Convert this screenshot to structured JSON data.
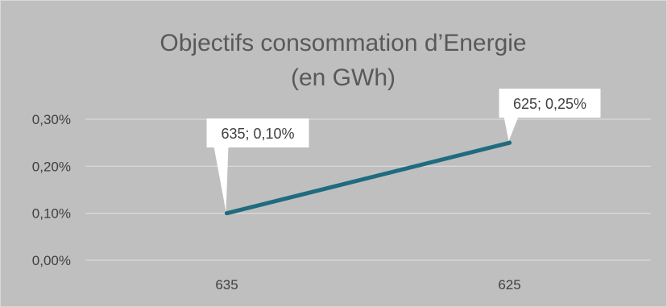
{
  "chart_data": {
    "type": "line",
    "title": "Objectifs consommation d’Energie",
    "subtitle": "(en GWh)",
    "categories": [
      "635",
      "625"
    ],
    "series": [
      {
        "values": [
          0.1,
          0.25
        ],
        "color": "#1f6b7f"
      }
    ],
    "data_labels": [
      "635; 0,10%",
      "625; 0,25%"
    ],
    "y_ticks": [
      "0,00%",
      "0,10%",
      "0,20%",
      "0,30%"
    ],
    "y_tick_values": [
      0,
      0.1,
      0.2,
      0.3
    ],
    "ylim": [
      0,
      0.3
    ],
    "grid": true,
    "legend": "none",
    "background": "#bfbfbf",
    "gridline_color": "#d9d9d9"
  }
}
